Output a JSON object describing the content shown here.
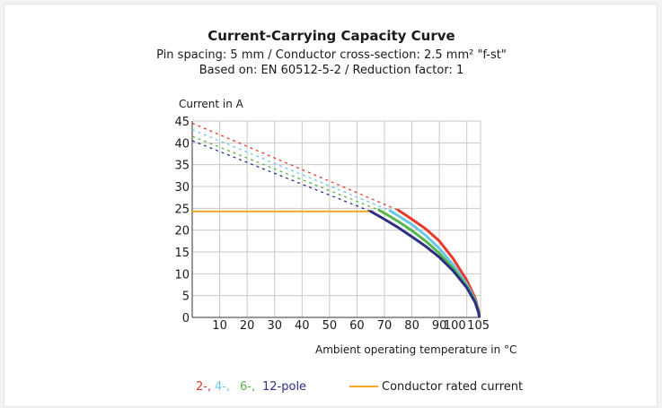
{
  "chart_data": {
    "type": "line",
    "title": "Current-Carrying Capacity Curve",
    "subtitle_lines": [
      "Pin spacing: 5 mm / Conductor cross-section: 2.5 mm² \"f-st\"",
      "Based on: EN 60512-5-2 / Reduction factor: 1"
    ],
    "ylabel": "Current in A",
    "xlabel": "Ambient operating temperature in °C",
    "xlim": [
      0,
      105
    ],
    "ylim": [
      0,
      45
    ],
    "x_ticks": [
      10,
      20,
      30,
      40,
      50,
      60,
      70,
      80,
      90,
      100,
      105
    ],
    "y_ticks": [
      0,
      5,
      10,
      15,
      20,
      25,
      30,
      35,
      40,
      45
    ],
    "grid": true,
    "series": [
      {
        "name": "2-",
        "color": "#e8392b",
        "dashed": [
          [
            0,
            44.5
          ],
          [
            75,
            24.6
          ]
        ],
        "solid": [
          [
            75,
            24.6
          ],
          [
            80,
            22.5
          ],
          [
            85,
            20.3
          ],
          [
            90,
            17.5
          ],
          [
            95,
            13.5
          ],
          [
            100,
            8.5
          ],
          [
            103,
            4.5
          ],
          [
            104.3,
            1.5
          ],
          [
            104.5,
            0.2
          ]
        ]
      },
      {
        "name": "4-",
        "color": "#6ec6e6",
        "dashed": [
          [
            0,
            43.0
          ],
          [
            72,
            24.5
          ]
        ],
        "solid": [
          [
            72,
            24.5
          ],
          [
            75,
            23.3
          ],
          [
            80,
            21.3
          ],
          [
            85,
            18.8
          ],
          [
            90,
            15.8
          ],
          [
            95,
            12.1
          ],
          [
            100,
            7.6
          ],
          [
            103,
            4.0
          ],
          [
            104.3,
            1.2
          ],
          [
            104.5,
            0.2
          ]
        ]
      },
      {
        "name": "6-",
        "color": "#55b848",
        "dashed": [
          [
            0,
            41.5
          ],
          [
            68,
            24.6
          ]
        ],
        "solid": [
          [
            68,
            24.6
          ],
          [
            70,
            23.9
          ],
          [
            75,
            22.0
          ],
          [
            80,
            19.9
          ],
          [
            85,
            17.5
          ],
          [
            90,
            14.7
          ],
          [
            95,
            11.3
          ],
          [
            100,
            7.1
          ],
          [
            103,
            3.8
          ],
          [
            104.3,
            1.2
          ],
          [
            104.5,
            0.2
          ]
        ]
      },
      {
        "name": "12-pole",
        "color": "#2b2f86",
        "dashed": [
          [
            0,
            40.5
          ],
          [
            65,
            24.3
          ]
        ],
        "solid": [
          [
            65,
            24.3
          ],
          [
            70,
            22.5
          ],
          [
            75,
            20.6
          ],
          [
            80,
            18.5
          ],
          [
            85,
            16.3
          ],
          [
            90,
            13.8
          ],
          [
            95,
            10.7
          ],
          [
            100,
            6.8
          ],
          [
            103,
            3.5
          ],
          [
            104.3,
            1.0
          ],
          [
            104.5,
            0.2
          ]
        ]
      }
    ],
    "conductor_rated_current": {
      "name": "Conductor rated current",
      "color": "#f5a623",
      "value": 24.3,
      "x_end": 66
    }
  }
}
